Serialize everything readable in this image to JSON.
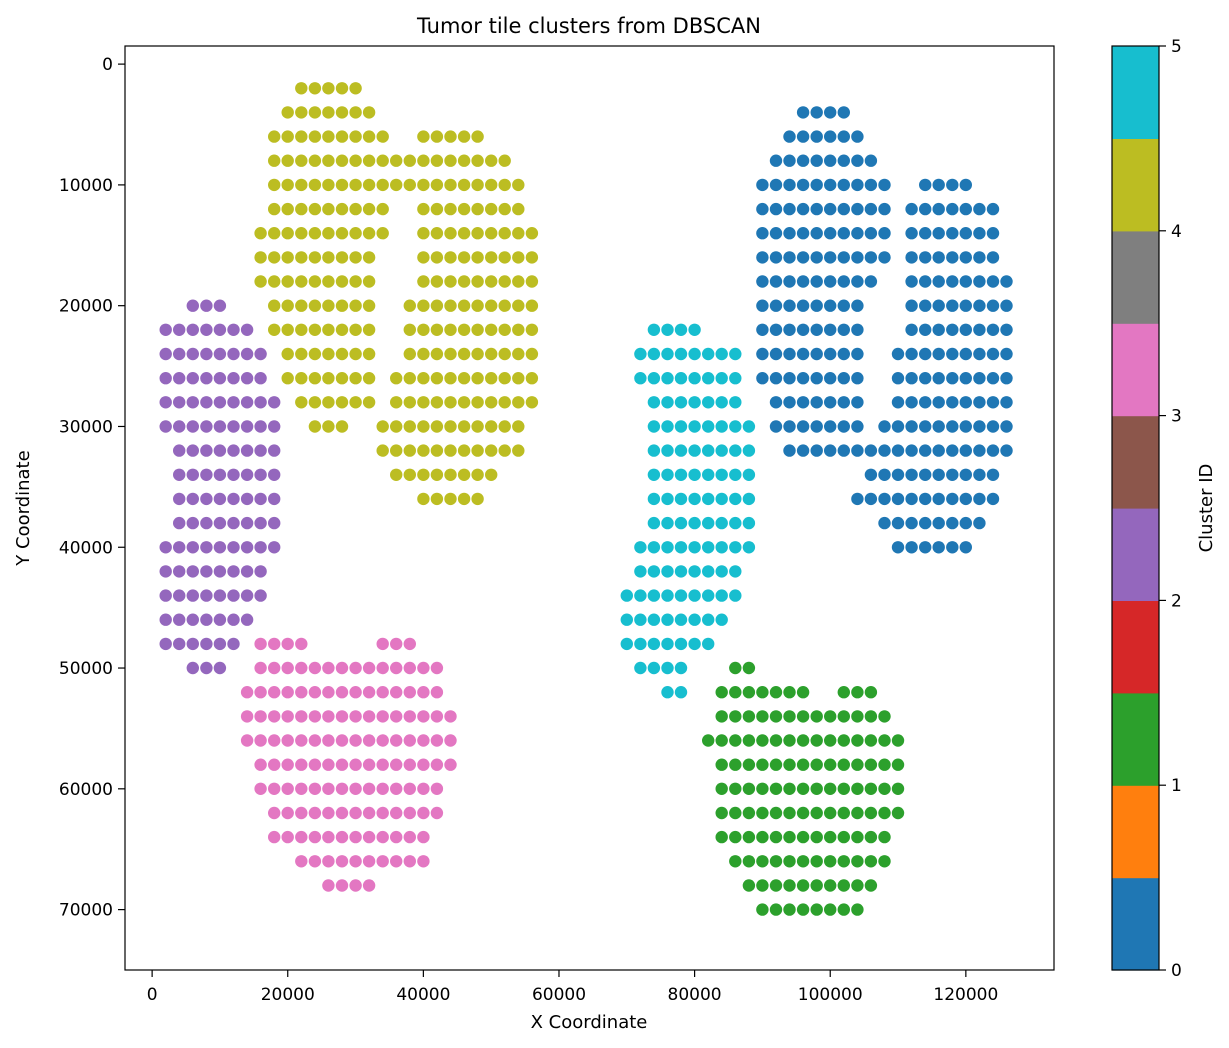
{
  "chart_data": {
    "type": "scatter",
    "title": "Tumor tile clusters from DBSCAN",
    "xlabel": "X Coordinate",
    "ylabel": "Y Coordinate",
    "xlim": [
      -4000,
      133000
    ],
    "ylim": [
      75000,
      -1500
    ],
    "y_inverted": true,
    "grid": false,
    "tile_step": 2000,
    "x_ticks": [
      {
        "value": 0,
        "label": "0"
      },
      {
        "value": 20000,
        "label": "20000"
      },
      {
        "value": 40000,
        "label": "40000"
      },
      {
        "value": 60000,
        "label": "60000"
      },
      {
        "value": 80000,
        "label": "80000"
      },
      {
        "value": 100000,
        "label": "100000"
      },
      {
        "value": 120000,
        "label": "120000"
      }
    ],
    "y_ticks": [
      {
        "value": 0,
        "label": "0"
      },
      {
        "value": 10000,
        "label": "10000"
      },
      {
        "value": 20000,
        "label": "20000"
      },
      {
        "value": 30000,
        "label": "30000"
      },
      {
        "value": 40000,
        "label": "40000"
      },
      {
        "value": 50000,
        "label": "50000"
      },
      {
        "value": 60000,
        "label": "60000"
      },
      {
        "value": 70000,
        "label": "70000"
      }
    ],
    "colorbar": {
      "label": "Cluster ID",
      "range": [
        0,
        5
      ],
      "ticks": [
        {
          "value": 0,
          "label": "0"
        },
        {
          "value": 1,
          "label": "1"
        },
        {
          "value": 2,
          "label": "2"
        },
        {
          "value": 3,
          "label": "3"
        },
        {
          "value": 4,
          "label": "4"
        },
        {
          "value": 5,
          "label": "5"
        }
      ],
      "colors": [
        "#1f77b4",
        "#ff7f0e",
        "#2ca02c",
        "#d62728",
        "#9467bd",
        "#8c564b",
        "#e377c2",
        "#7f7f7f",
        "#bcbd22",
        "#17becf"
      ]
    },
    "series": [
      {
        "cluster": 0,
        "color": "#1f77b4",
        "rows": [
          {
            "y": 4000,
            "runs": [
              [
                96000,
                102000
              ]
            ]
          },
          {
            "y": 6000,
            "runs": [
              [
                94000,
                104000
              ]
            ]
          },
          {
            "y": 8000,
            "runs": [
              [
                92000,
                106000
              ]
            ]
          },
          {
            "y": 10000,
            "runs": [
              [
                90000,
                108000
              ],
              [
                114000,
                120000
              ]
            ]
          },
          {
            "y": 12000,
            "runs": [
              [
                90000,
                108000
              ],
              [
                112000,
                124000
              ]
            ]
          },
          {
            "y": 14000,
            "runs": [
              [
                90000,
                108000
              ],
              [
                112000,
                124000
              ]
            ]
          },
          {
            "y": 16000,
            "runs": [
              [
                90000,
                108000
              ],
              [
                112000,
                124000
              ]
            ]
          },
          {
            "y": 18000,
            "runs": [
              [
                90000,
                106000
              ],
              [
                112000,
                126000
              ]
            ]
          },
          {
            "y": 20000,
            "runs": [
              [
                90000,
                104000
              ],
              [
                112000,
                126000
              ]
            ]
          },
          {
            "y": 22000,
            "runs": [
              [
                90000,
                104000
              ],
              [
                112000,
                126000
              ]
            ]
          },
          {
            "y": 24000,
            "runs": [
              [
                90000,
                104000
              ],
              [
                110000,
                126000
              ]
            ]
          },
          {
            "y": 26000,
            "runs": [
              [
                90000,
                104000
              ],
              [
                110000,
                126000
              ]
            ]
          },
          {
            "y": 28000,
            "runs": [
              [
                92000,
                104000
              ],
              [
                110000,
                126000
              ]
            ]
          },
          {
            "y": 30000,
            "runs": [
              [
                92000,
                104000
              ],
              [
                108000,
                126000
              ]
            ]
          },
          {
            "y": 32000,
            "runs": [
              [
                94000,
                126000
              ]
            ]
          },
          {
            "y": 34000,
            "runs": [
              [
                106000,
                124000
              ]
            ]
          },
          {
            "y": 36000,
            "runs": [
              [
                104000,
                124000
              ]
            ]
          },
          {
            "y": 38000,
            "runs": [
              [
                108000,
                122000
              ]
            ]
          },
          {
            "y": 40000,
            "runs": [
              [
                110000,
                120000
              ]
            ]
          }
        ]
      },
      {
        "cluster": 1,
        "color": "#2ca02c",
        "rows": [
          {
            "y": 50000,
            "runs": [
              [
                86000,
                88000
              ]
            ]
          },
          {
            "y": 52000,
            "runs": [
              [
                84000,
                96000
              ],
              [
                102000,
                106000
              ]
            ]
          },
          {
            "y": 54000,
            "runs": [
              [
                84000,
                108000
              ]
            ]
          },
          {
            "y": 56000,
            "runs": [
              [
                82000,
                110000
              ]
            ]
          },
          {
            "y": 58000,
            "runs": [
              [
                84000,
                110000
              ]
            ]
          },
          {
            "y": 60000,
            "runs": [
              [
                84000,
                110000
              ]
            ]
          },
          {
            "y": 62000,
            "runs": [
              [
                84000,
                110000
              ]
            ]
          },
          {
            "y": 64000,
            "runs": [
              [
                84000,
                108000
              ]
            ]
          },
          {
            "y": 66000,
            "runs": [
              [
                86000,
                108000
              ]
            ]
          },
          {
            "y": 68000,
            "runs": [
              [
                88000,
                106000
              ]
            ]
          },
          {
            "y": 70000,
            "runs": [
              [
                90000,
                104000
              ]
            ]
          }
        ]
      },
      {
        "cluster": 2,
        "color": "#9467bd",
        "rows": [
          {
            "y": 20000,
            "runs": [
              [
                6000,
                10000
              ]
            ]
          },
          {
            "y": 22000,
            "runs": [
              [
                2000,
                14000
              ]
            ]
          },
          {
            "y": 24000,
            "runs": [
              [
                2000,
                16000
              ]
            ]
          },
          {
            "y": 26000,
            "runs": [
              [
                2000,
                16000
              ]
            ]
          },
          {
            "y": 28000,
            "runs": [
              [
                2000,
                18000
              ]
            ]
          },
          {
            "y": 30000,
            "runs": [
              [
                2000,
                18000
              ]
            ]
          },
          {
            "y": 32000,
            "runs": [
              [
                4000,
                18000
              ]
            ]
          },
          {
            "y": 34000,
            "runs": [
              [
                4000,
                18000
              ]
            ]
          },
          {
            "y": 36000,
            "runs": [
              [
                4000,
                18000
              ]
            ]
          },
          {
            "y": 38000,
            "runs": [
              [
                4000,
                18000
              ]
            ]
          },
          {
            "y": 40000,
            "runs": [
              [
                2000,
                18000
              ]
            ]
          },
          {
            "y": 42000,
            "runs": [
              [
                2000,
                16000
              ]
            ]
          },
          {
            "y": 44000,
            "runs": [
              [
                2000,
                16000
              ]
            ]
          },
          {
            "y": 46000,
            "runs": [
              [
                2000,
                14000
              ]
            ]
          },
          {
            "y": 48000,
            "runs": [
              [
                2000,
                12000
              ]
            ]
          },
          {
            "y": 50000,
            "runs": [
              [
                6000,
                10000
              ]
            ]
          }
        ]
      },
      {
        "cluster": 3,
        "color": "#e377c2",
        "rows": [
          {
            "y": 48000,
            "runs": [
              [
                16000,
                22000
              ],
              [
                34000,
                38000
              ]
            ]
          },
          {
            "y": 50000,
            "runs": [
              [
                16000,
                42000
              ]
            ]
          },
          {
            "y": 52000,
            "runs": [
              [
                14000,
                42000
              ]
            ]
          },
          {
            "y": 54000,
            "runs": [
              [
                14000,
                44000
              ]
            ]
          },
          {
            "y": 56000,
            "runs": [
              [
                14000,
                44000
              ]
            ]
          },
          {
            "y": 58000,
            "runs": [
              [
                16000,
                44000
              ]
            ]
          },
          {
            "y": 60000,
            "runs": [
              [
                16000,
                42000
              ]
            ]
          },
          {
            "y": 62000,
            "runs": [
              [
                18000,
                42000
              ]
            ]
          },
          {
            "y": 64000,
            "runs": [
              [
                18000,
                40000
              ]
            ]
          },
          {
            "y": 66000,
            "runs": [
              [
                22000,
                40000
              ]
            ]
          },
          {
            "y": 68000,
            "runs": [
              [
                26000,
                32000
              ]
            ]
          }
        ]
      },
      {
        "cluster": 4,
        "color": "#bcbd22",
        "rows": [
          {
            "y": 2000,
            "runs": [
              [
                22000,
                30000
              ]
            ]
          },
          {
            "y": 4000,
            "runs": [
              [
                20000,
                32000
              ]
            ]
          },
          {
            "y": 6000,
            "runs": [
              [
                18000,
                34000
              ],
              [
                40000,
                48000
              ]
            ]
          },
          {
            "y": 8000,
            "runs": [
              [
                18000,
                52000
              ]
            ]
          },
          {
            "y": 10000,
            "runs": [
              [
                18000,
                54000
              ]
            ]
          },
          {
            "y": 12000,
            "runs": [
              [
                18000,
                34000
              ],
              [
                40000,
                54000
              ]
            ]
          },
          {
            "y": 14000,
            "runs": [
              [
                16000,
                34000
              ],
              [
                40000,
                56000
              ]
            ]
          },
          {
            "y": 16000,
            "runs": [
              [
                16000,
                32000
              ],
              [
                40000,
                56000
              ]
            ]
          },
          {
            "y": 18000,
            "runs": [
              [
                16000,
                32000
              ],
              [
                40000,
                56000
              ]
            ]
          },
          {
            "y": 20000,
            "runs": [
              [
                18000,
                32000
              ],
              [
                38000,
                56000
              ]
            ]
          },
          {
            "y": 22000,
            "runs": [
              [
                18000,
                32000
              ],
              [
                38000,
                56000
              ]
            ]
          },
          {
            "y": 24000,
            "runs": [
              [
                20000,
                32000
              ],
              [
                38000,
                56000
              ]
            ]
          },
          {
            "y": 26000,
            "runs": [
              [
                20000,
                32000
              ],
              [
                36000,
                56000
              ]
            ]
          },
          {
            "y": 28000,
            "runs": [
              [
                22000,
                32000
              ],
              [
                36000,
                56000
              ]
            ]
          },
          {
            "y": 30000,
            "runs": [
              [
                24000,
                28000
              ],
              [
                34000,
                54000
              ]
            ]
          },
          {
            "y": 32000,
            "runs": [
              [
                34000,
                54000
              ]
            ]
          },
          {
            "y": 34000,
            "runs": [
              [
                36000,
                50000
              ]
            ]
          },
          {
            "y": 36000,
            "runs": [
              [
                40000,
                48000
              ]
            ]
          }
        ]
      },
      {
        "cluster": 5,
        "color": "#17becf",
        "rows": [
          {
            "y": 22000,
            "runs": [
              [
                74000,
                80000
              ]
            ]
          },
          {
            "y": 24000,
            "runs": [
              [
                72000,
                86000
              ]
            ]
          },
          {
            "y": 26000,
            "runs": [
              [
                72000,
                86000
              ]
            ]
          },
          {
            "y": 28000,
            "runs": [
              [
                74000,
                86000
              ]
            ]
          },
          {
            "y": 30000,
            "runs": [
              [
                74000,
                88000
              ]
            ]
          },
          {
            "y": 32000,
            "runs": [
              [
                74000,
                88000
              ]
            ]
          },
          {
            "y": 34000,
            "runs": [
              [
                74000,
                88000
              ]
            ]
          },
          {
            "y": 36000,
            "runs": [
              [
                74000,
                88000
              ]
            ]
          },
          {
            "y": 38000,
            "runs": [
              [
                74000,
                88000
              ]
            ]
          },
          {
            "y": 40000,
            "runs": [
              [
                72000,
                88000
              ]
            ]
          },
          {
            "y": 42000,
            "runs": [
              [
                72000,
                86000
              ]
            ]
          },
          {
            "y": 44000,
            "runs": [
              [
                70000,
                86000
              ]
            ]
          },
          {
            "y": 46000,
            "runs": [
              [
                70000,
                84000
              ]
            ]
          },
          {
            "y": 48000,
            "runs": [
              [
                70000,
                82000
              ]
            ]
          },
          {
            "y": 50000,
            "runs": [
              [
                72000,
                78000
              ]
            ]
          },
          {
            "y": 52000,
            "runs": [
              [
                76000,
                78000
              ]
            ]
          }
        ]
      }
    ]
  }
}
